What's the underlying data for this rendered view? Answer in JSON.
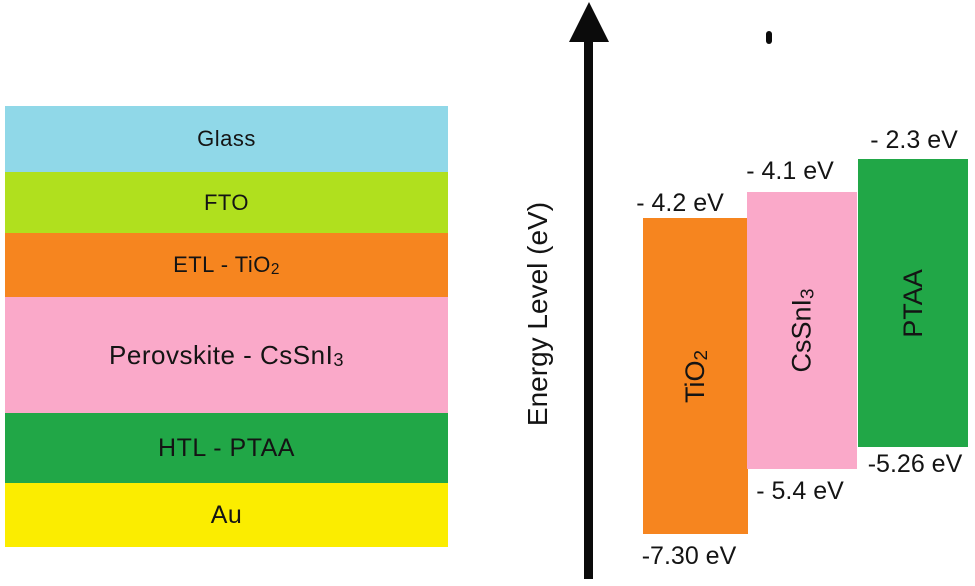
{
  "figure": {
    "device_stack": {
      "layers": [
        {
          "name": "glass",
          "label": "Glass",
          "sub": "",
          "color": "#90D8E8"
        },
        {
          "name": "fto",
          "label": "FTO",
          "sub": "",
          "color": "#B0E01E"
        },
        {
          "name": "etl",
          "label": "ETL - TiO",
          "sub": "2",
          "color": "#F6851F"
        },
        {
          "name": "perovskite",
          "label": "Perovskite - CsSnI",
          "sub": "3",
          "color": "#FAA9C9"
        },
        {
          "name": "htl",
          "label": "HTL - PTAA",
          "sub": "",
          "color": "#21A747"
        },
        {
          "name": "au",
          "label": "Au",
          "sub": "",
          "color": "#FBED00"
        }
      ]
    },
    "energy_diagram": {
      "axis_label": "Energy Level (eV)",
      "bars": [
        {
          "material": "TiO",
          "sub": "2",
          "color": "#F6851F",
          "top_ev": "- 4.2 eV",
          "bottom_ev": "-7.30 eV"
        },
        {
          "material": "CsSnI",
          "sub": "3",
          "color": "#FAA9C9",
          "top_ev": "- 4.1 eV",
          "bottom_ev": "- 5.4 eV"
        },
        {
          "material": "PTAA",
          "sub": "",
          "color": "#21A747",
          "top_ev": "- 2.3 eV",
          "bottom_ev": "-5.26 eV"
        }
      ]
    }
  },
  "chart_data": {
    "type": "bar",
    "title": "Energy Level (eV)",
    "ylabel": "Energy Level (eV)",
    "categories": [
      "TiO2",
      "CsSnI3",
      "PTAA"
    ],
    "series": [
      {
        "name": "TiO2",
        "top_ev": -4.2,
        "bottom_ev": -7.3
      },
      {
        "name": "CsSnI3",
        "top_ev": -4.1,
        "bottom_ev": -5.4
      },
      {
        "name": "PTAA",
        "top_ev": -2.3,
        "bottom_ev": -5.26
      }
    ]
  }
}
